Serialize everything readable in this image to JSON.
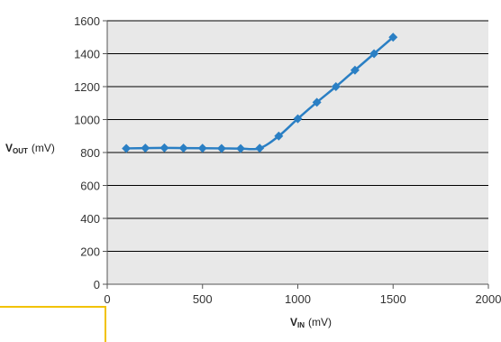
{
  "chart_data": {
    "type": "line",
    "title": "",
    "xlabel": {
      "main": "V",
      "sub": "IN",
      "unit": "(mV)"
    },
    "ylabel": {
      "main": "V",
      "sub": "OUT",
      "unit": "(mV)"
    },
    "xlim": [
      0,
      2000
    ],
    "ylim": [
      0,
      1600
    ],
    "x_ticks": [
      0,
      500,
      1000,
      1500,
      2000
    ],
    "y_ticks": [
      0,
      200,
      400,
      600,
      800,
      1000,
      1200,
      1400,
      1600
    ],
    "grid": true,
    "series": [
      {
        "x": [
          100,
          200,
          300,
          400,
          500,
          600,
          700,
          800,
          900,
          1000,
          1100,
          1200,
          1300,
          1400,
          1500
        ],
        "values": [
          825,
          827,
          828,
          827,
          826,
          825,
          824,
          826,
          900,
          1005,
          1105,
          1200,
          1300,
          1400,
          1500
        ],
        "color": "#2a7fc4",
        "marker": "diamond"
      }
    ],
    "plot_background": "#e8e8e8"
  }
}
